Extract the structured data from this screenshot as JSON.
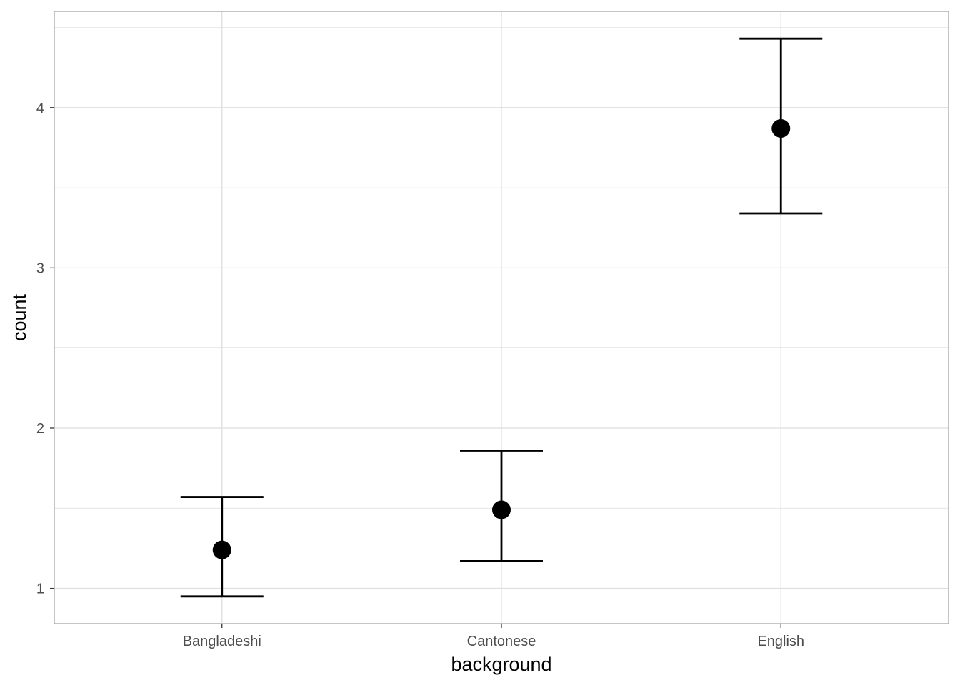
{
  "chart_data": {
    "type": "scatter",
    "subtype": "point-with-errorbars",
    "title": "",
    "xlabel": "background",
    "ylabel": "count",
    "categories": [
      "Bangladeshi",
      "Cantonese",
      "English"
    ],
    "series": [
      {
        "values": [
          1.24,
          1.49,
          3.87
        ],
        "lower": [
          0.95,
          1.17,
          3.34
        ],
        "upper": [
          1.57,
          1.86,
          4.43
        ]
      }
    ],
    "yticks": [
      1,
      2,
      3,
      4
    ],
    "ylim": [
      0.78,
      4.6
    ],
    "grid": true,
    "legend": "none",
    "colors": {
      "point": "#000000",
      "errorbar": "#000000",
      "grid": "#dedede",
      "panel_border": "#a6a6a6"
    }
  }
}
